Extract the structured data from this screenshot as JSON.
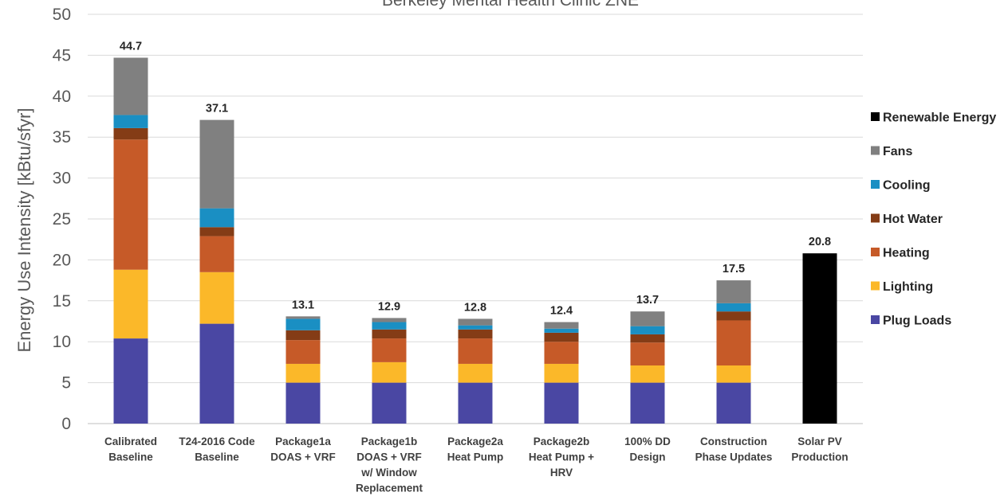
{
  "chart_data": {
    "type": "bar",
    "stacked": true,
    "title": "Berkeley Mental Health Clinic ZNE",
    "ylabel": "Energy Use Intensity [kBtu/sfyr]",
    "ylim": [
      0,
      50
    ],
    "yticks": [
      "0",
      "5",
      "10",
      "15",
      "20",
      "25",
      "30",
      "35",
      "40",
      "45",
      "50"
    ],
    "grid": true,
    "legend_position": "right",
    "categories": [
      [
        "Calibrated",
        "Baseline"
      ],
      [
        "T24-2016 Code",
        "Baseline"
      ],
      [
        "Package1a",
        "DOAS + VRF"
      ],
      [
        "Package1b",
        "DOAS + VRF",
        "w/ Window",
        "Replacement"
      ],
      [
        "Package2a",
        "Heat Pump"
      ],
      [
        "Package2b",
        "Heat Pump +",
        "HRV"
      ],
      [
        "100% DD",
        "Design"
      ],
      [
        "Construction",
        "Phase Updates"
      ],
      [
        "Solar PV",
        "Production"
      ]
    ],
    "series": [
      {
        "name": "Plug Loads",
        "color": "#4a47a3",
        "values": [
          10.4,
          12.2,
          5.0,
          5.0,
          5.0,
          5.0,
          5.0,
          5.0,
          0
        ]
      },
      {
        "name": "Lighting",
        "color": "#fbb829",
        "values": [
          8.4,
          6.3,
          2.3,
          2.5,
          2.3,
          2.3,
          2.1,
          2.1,
          0
        ]
      },
      {
        "name": "Heating",
        "color": "#c65a28",
        "values": [
          15.9,
          4.4,
          2.9,
          2.9,
          3.1,
          2.7,
          2.8,
          5.5,
          0
        ]
      },
      {
        "name": "Hot Water",
        "color": "#843c16",
        "values": [
          1.4,
          1.1,
          1.2,
          1.1,
          1.1,
          1.1,
          1.0,
          1.1,
          0
        ]
      },
      {
        "name": "Cooling",
        "color": "#1a8fc3",
        "values": [
          1.6,
          2.3,
          1.4,
          0.9,
          0.5,
          0.5,
          1.0,
          1.0,
          0
        ]
      },
      {
        "name": "Fans",
        "color": "#808080",
        "values": [
          7.0,
          10.8,
          0.3,
          0.5,
          0.8,
          0.8,
          1.8,
          2.8,
          0
        ]
      },
      {
        "name": "Renewable Energy",
        "color": "#000000",
        "values": [
          0,
          0,
          0,
          0,
          0,
          0,
          0,
          0,
          20.8
        ]
      }
    ],
    "totals": [
      "44.7",
      "37.1",
      "13.1",
      "12.9",
      "12.8",
      "12.4",
      "13.7",
      "17.5",
      "20.8"
    ],
    "legend_order": [
      "Renewable Energy",
      "Fans",
      "Cooling",
      "Hot Water",
      "Heating",
      "Lighting",
      "Plug Loads"
    ]
  }
}
